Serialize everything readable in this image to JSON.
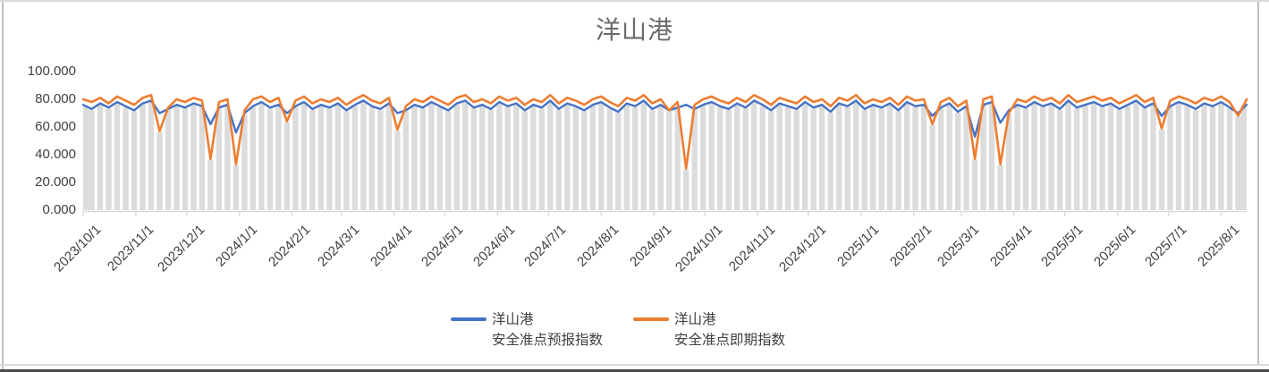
{
  "title": "洋山港",
  "colors": {
    "forecast_line": "#4472C4",
    "spot_line": "#ED7D31",
    "drop_bars": "#DCDCDC",
    "axis_line": "#D9D9D9",
    "axis_text": "#404040",
    "title_text": "#6B6B6B",
    "frame_light": "#D9D9D9",
    "frame_mid": "#BFBFBF",
    "frame_dark": "#4A4A4A"
  },
  "y_axis": {
    "tick_labels": [
      "100.000",
      "80.000",
      "60.000",
      "40.000",
      "20.000",
      "0.000"
    ],
    "tick_values": [
      100,
      80,
      60,
      40,
      20,
      0
    ]
  },
  "x_axis": {
    "tick_labels": [
      "2023/10/1",
      "2023/11/1",
      "2023/12/1",
      "2024/1/1",
      "2024/2/1",
      "2024/3/1",
      "2024/4/1",
      "2024/5/1",
      "2024/6/1",
      "2024/7/1",
      "2024/8/1",
      "2024/9/1",
      "2024/10/1",
      "2024/11/1",
      "2024/12/1",
      "2025/1/1",
      "2025/2/1",
      "2025/3/1",
      "2025/4/1",
      "2025/5/1",
      "2025/6/1",
      "2025/7/1",
      "2025/8/1"
    ],
    "tick_day_offsets": [
      0,
      31,
      61,
      92,
      123,
      152,
      183,
      213,
      244,
      274,
      305,
      336,
      366,
      397,
      427,
      458,
      489,
      517,
      548,
      578,
      609,
      639,
      670
    ]
  },
  "legend": {
    "entries": [
      {
        "name_line1": "洋山港",
        "name_line2": "安全准点预报指数"
      },
      {
        "name_line1": "洋山港",
        "name_line2": "安全准点即期指数"
      }
    ]
  },
  "chart_data": {
    "type": "line",
    "title": "洋山港",
    "xlabel": "",
    "ylabel": "",
    "ylim": [
      0,
      100
    ],
    "grid": false,
    "legend_position": "bottom",
    "x_start_date": "2023/10/1",
    "x_end_date": "2025/8/15",
    "sample_interval_days": 5,
    "note": "values estimated from dense daily plot; sampled every 5 days; gray background columns are per-point drop lines to the axis",
    "series": [
      {
        "name": "洋山港 安全准点预报指数",
        "color": "#4472C4",
        "values": [
          76,
          73,
          77,
          74,
          78,
          75,
          72,
          77,
          79,
          70,
          73,
          76,
          74,
          77,
          75,
          62,
          74,
          76,
          56,
          70,
          75,
          78,
          74,
          76,
          70,
          75,
          78,
          73,
          76,
          74,
          77,
          72,
          76,
          79,
          75,
          73,
          77,
          70,
          72,
          76,
          74,
          78,
          75,
          72,
          77,
          79,
          74,
          76,
          73,
          78,
          75,
          77,
          72,
          76,
          74,
          79,
          73,
          77,
          75,
          72,
          76,
          78,
          74,
          71,
          77,
          75,
          79,
          73,
          76,
          72,
          74,
          76,
          73,
          76,
          78,
          75,
          73,
          77,
          74,
          79,
          76,
          72,
          77,
          75,
          73,
          78,
          74,
          76,
          71,
          77,
          75,
          79,
          73,
          76,
          74,
          77,
          72,
          78,
          75,
          76,
          68,
          74,
          77,
          71,
          75,
          53,
          76,
          78,
          63,
          72,
          76,
          74,
          78,
          75,
          77,
          73,
          79,
          74,
          76,
          78,
          75,
          77,
          73,
          76,
          79,
          74,
          77,
          68,
          75,
          78,
          76,
          73,
          77,
          75,
          78,
          74,
          70,
          76
        ]
      },
      {
        "name": "洋山港 安全准点即期指数",
        "color": "#ED7D31",
        "values": [
          80,
          78,
          81,
          77,
          82,
          79,
          76,
          81,
          83,
          57,
          74,
          80,
          78,
          81,
          79,
          37,
          78,
          80,
          33,
          72,
          80,
          82,
          78,
          81,
          64,
          79,
          82,
          77,
          80,
          78,
          81,
          76,
          80,
          83,
          79,
          77,
          81,
          58,
          75,
          80,
          78,
          82,
          79,
          76,
          81,
          83,
          78,
          80,
          77,
          82,
          79,
          81,
          76,
          80,
          78,
          83,
          77,
          81,
          79,
          76,
          80,
          82,
          78,
          75,
          81,
          79,
          83,
          77,
          80,
          72,
          78,
          30,
          76,
          80,
          82,
          79,
          77,
          81,
          78,
          83,
          80,
          76,
          81,
          79,
          77,
          82,
          78,
          80,
          75,
          81,
          79,
          83,
          77,
          80,
          78,
          81,
          76,
          82,
          79,
          80,
          62,
          78,
          81,
          75,
          79,
          37,
          80,
          82,
          33,
          70,
          80,
          78,
          82,
          79,
          81,
          77,
          83,
          78,
          80,
          82,
          79,
          81,
          77,
          80,
          83,
          78,
          81,
          59,
          79,
          82,
          80,
          77,
          81,
          79,
          82,
          78,
          68,
          80
        ]
      }
    ]
  }
}
